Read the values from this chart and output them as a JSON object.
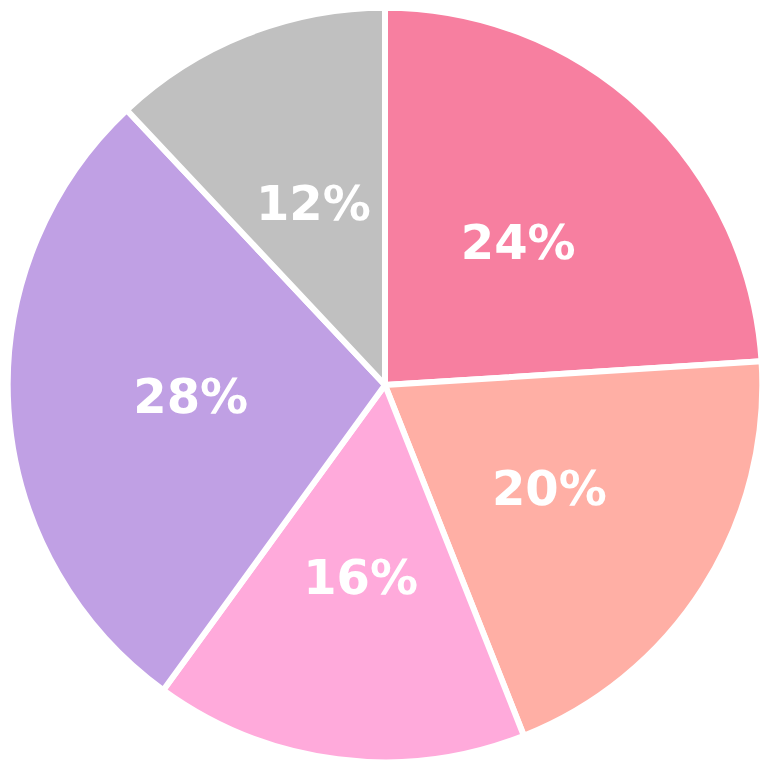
{
  "chart_data": {
    "type": "pie",
    "categories": [
      null,
      null,
      null,
      null,
      null
    ],
    "values": [
      24,
      20,
      16,
      28,
      12
    ],
    "colors": [
      "#f77fa0",
      "#ffafa5",
      "#ffaadb",
      "#c0a0e4",
      "#c0c0c0"
    ],
    "value_labels": [
      "24%",
      "20%",
      "16%",
      "28%",
      "12%"
    ]
  }
}
